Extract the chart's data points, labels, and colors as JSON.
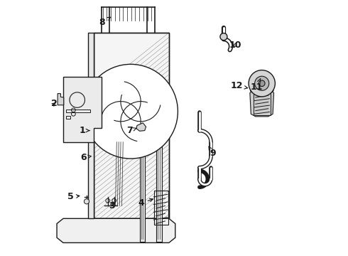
{
  "bg_color": "#ffffff",
  "line_color": "#1a1a1a",
  "lw": 1.0,
  "font_size": 9,
  "labels": {
    "1": [
      0.165,
      0.485,
      0.205,
      0.495
    ],
    "2": [
      0.058,
      0.595,
      0.095,
      0.6
    ],
    "3": [
      0.275,
      0.205,
      0.295,
      0.22
    ],
    "4": [
      0.385,
      0.215,
      0.42,
      0.245
    ],
    "5": [
      0.115,
      0.23,
      0.15,
      0.235
    ],
    "6": [
      0.168,
      0.385,
      0.205,
      0.39
    ],
    "7": [
      0.345,
      0.49,
      0.375,
      0.505
    ],
    "8": [
      0.218,
      0.9,
      0.278,
      0.895
    ],
    "9": [
      0.66,
      0.39,
      0.655,
      0.435
    ],
    "10": [
      0.73,
      0.82,
      0.71,
      0.815
    ],
    "11": [
      0.83,
      0.65,
      0.84,
      0.69
    ],
    "12": [
      0.75,
      0.665,
      0.78,
      0.68
    ]
  }
}
